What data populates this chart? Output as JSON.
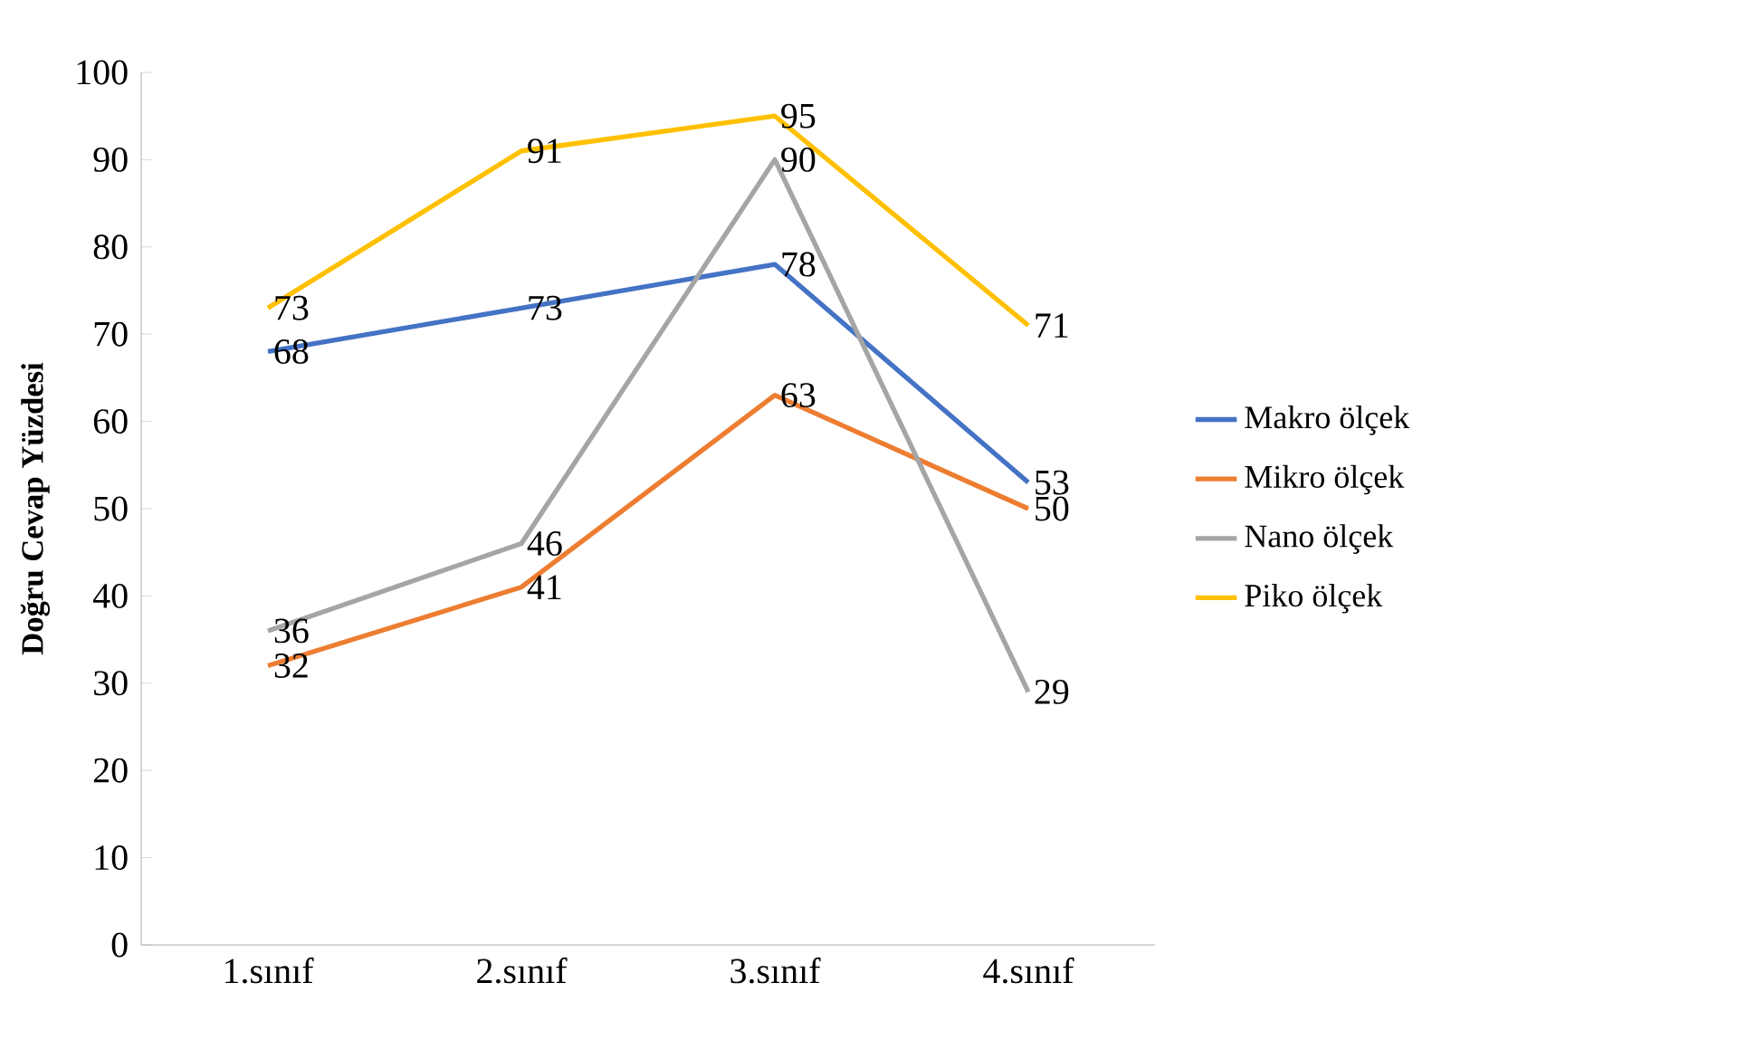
{
  "chart_data": {
    "type": "line",
    "ylabel": "Doğru Cevap Yüzdesi",
    "categories": [
      "1.sınıf",
      "2.sınıf",
      "3.sınıf",
      "4.sınıf"
    ],
    "series": [
      {
        "name": "Makro ölçek",
        "color": "#4472c4",
        "values": [
          68,
          73,
          78,
          53
        ]
      },
      {
        "name": "Mikro ölçek",
        "color": "#ed7d31",
        "values": [
          32,
          41,
          63,
          50
        ]
      },
      {
        "name": "Nano ölçek",
        "color": "#a5a5a5",
        "values": [
          36,
          46,
          90,
          29
        ]
      },
      {
        "name": "Piko ölçek",
        "color": "#ffc000",
        "values": [
          73,
          91,
          95,
          71
        ]
      }
    ],
    "ylim": [
      0,
      100
    ],
    "yticks": [
      0,
      10,
      20,
      30,
      40,
      50,
      60,
      70,
      80,
      90,
      100
    ],
    "data_labels": true,
    "legend": "right",
    "grid": false,
    "marker": "none",
    "line_style": "solid"
  }
}
